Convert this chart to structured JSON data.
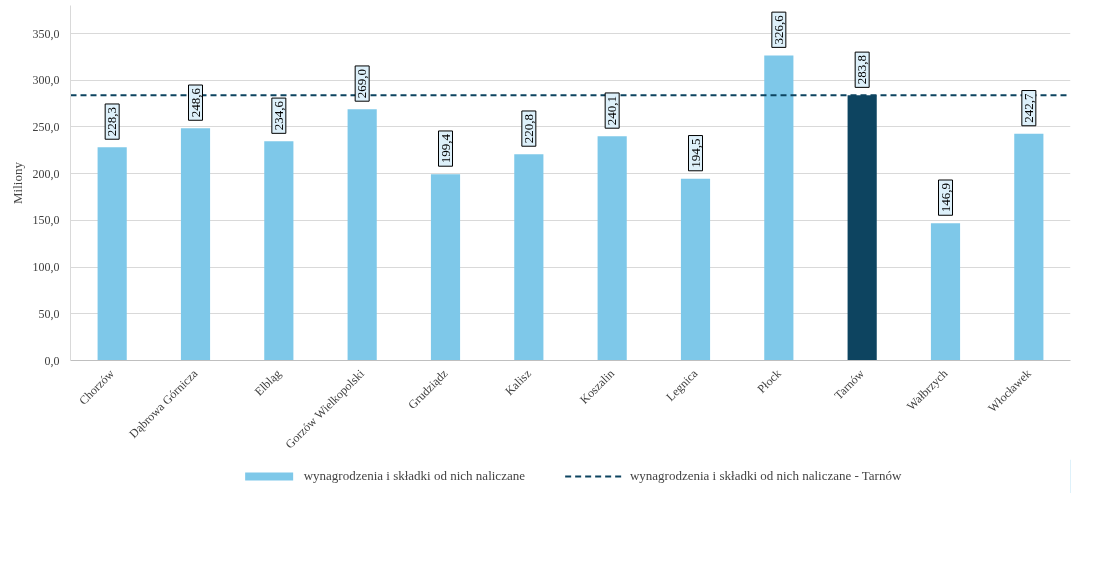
{
  "chart_data": {
    "type": "bar",
    "ylabel": "Miliony",
    "categories": [
      "Chorzów",
      "Dąbrowa Górnicza",
      "Elbląg",
      "Gorzów Wielkopolski",
      "Grudziądz",
      "Kalisz",
      "Koszalin",
      "Legnica",
      "Płock",
      "Tarnów",
      "Wałbrzych",
      "Włocławek"
    ],
    "series": [
      {
        "name": "wynagrodzenia i składki od nich naliczane",
        "color": "#7ec8e9",
        "colors": [
          "#7ec8e9",
          "#7ec8e9",
          "#7ec8e9",
          "#7ec8e9",
          "#7ec8e9",
          "#7ec8e9",
          "#7ec8e9",
          "#7ec8e9",
          "#7ec8e9",
          "#0d4460",
          "#7ec8e9",
          "#7ec8e9"
        ],
        "values": [
          228.3,
          248.6,
          234.6,
          269.0,
          199.4,
          220.8,
          240.1,
          194.5,
          326.6,
          283.8,
          146.9,
          242.7
        ],
        "value_labels": [
          "228,3",
          "248,6",
          "234,6",
          "269,0",
          "199,4",
          "220,8",
          "240,1",
          "194,5",
          "326,6",
          "283,8",
          "146,9",
          "242,7"
        ]
      }
    ],
    "ref_lines": [
      {
        "axis": "y",
        "value": 283.8,
        "label": "wynagrodzenia i składki od nich naliczane - Tarnów",
        "color": "#0d4460",
        "line_style": "dashed"
      }
    ],
    "ylim": [
      0,
      380
    ],
    "yticks": [
      {
        "value": 0,
        "label": "0,0"
      },
      {
        "value": 50,
        "label": "50,0"
      },
      {
        "value": 100,
        "label": "100,0"
      },
      {
        "value": 150,
        "label": "150,0"
      },
      {
        "value": 200,
        "label": "200,0"
      },
      {
        "value": 250,
        "label": "250,0"
      },
      {
        "value": 300,
        "label": "300,0"
      },
      {
        "value": 350,
        "label": "350,0"
      }
    ],
    "grid": "y",
    "legend": "bottom"
  }
}
